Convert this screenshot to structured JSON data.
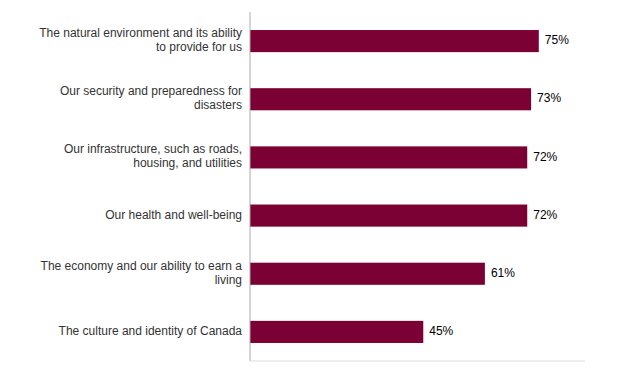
{
  "chart_data": {
    "type": "bar",
    "orientation": "horizontal",
    "categories": [
      "The culture and identity of Canada",
      "The economy and our ability to earn a\nliving",
      "Our health and well-being",
      "Our infrastructure, such as roads,\nhousing, and utilities",
      "Our security and preparedness for\ndisasters",
      "The natural environment and its ability\nto provide for us"
    ],
    "values": [
      45,
      61,
      72,
      72,
      73,
      75
    ],
    "value_labels": [
      "45%",
      "61%",
      "72%",
      "72%",
      "73%",
      "75%"
    ],
    "data_labels": true,
    "color": "#7B0033",
    "xlim": [
      0,
      87
    ],
    "tick_labels": "y"
  }
}
